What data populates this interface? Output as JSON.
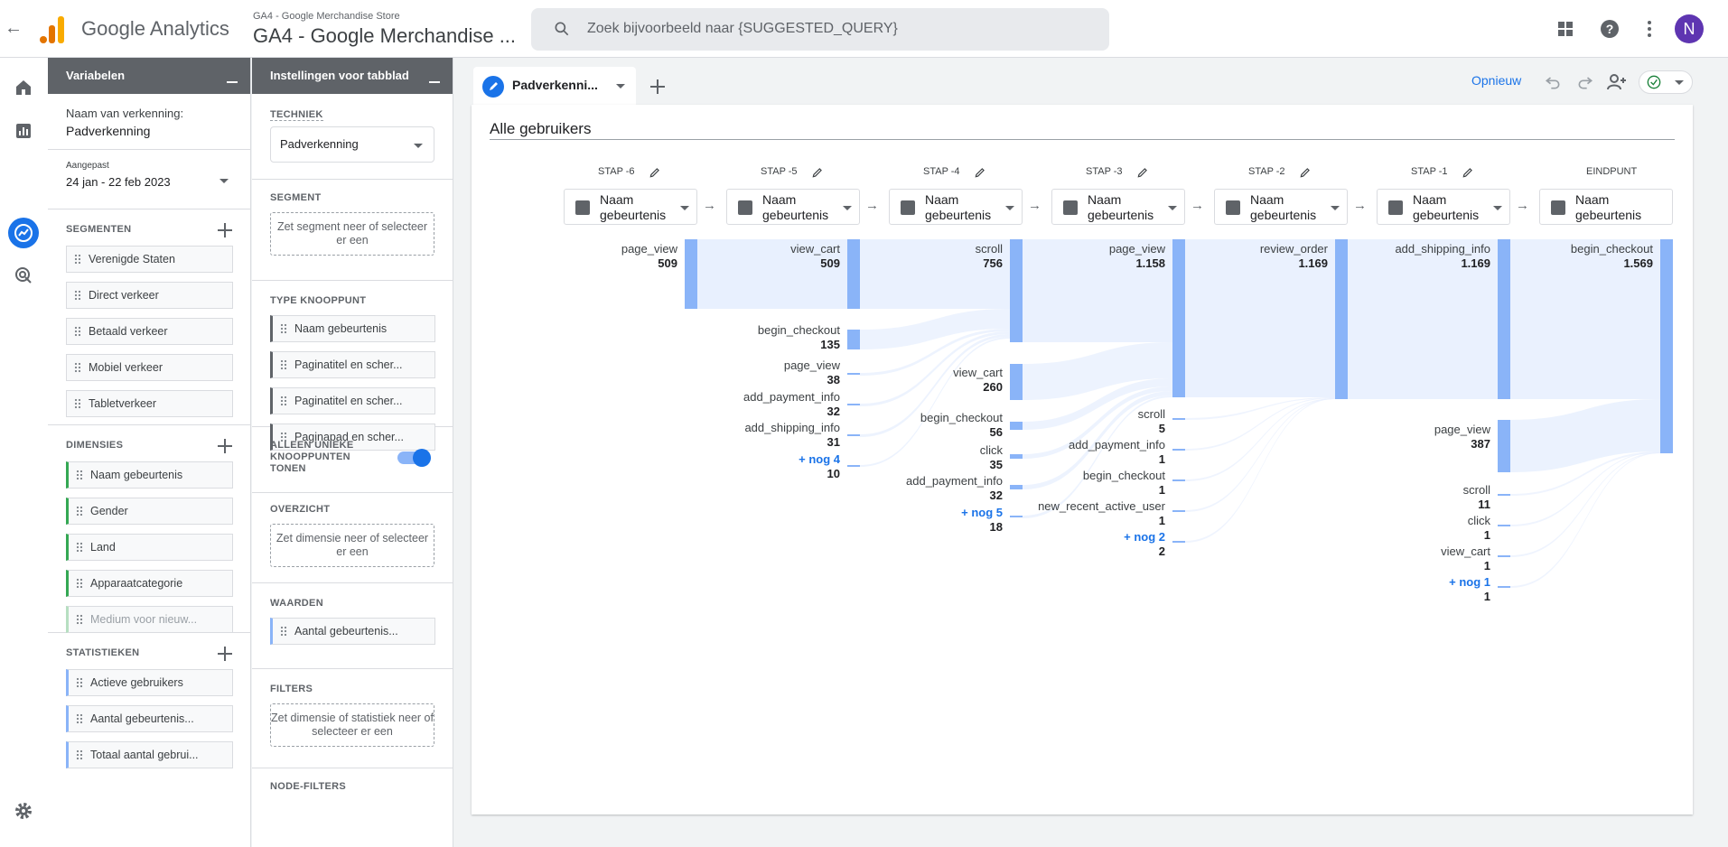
{
  "header": {
    "app_name": "Google Analytics",
    "property_small": "GA4 - Google Merchandise Store",
    "property_big": "GA4 - Google Merchandise ...",
    "search_placeholder": "Zoek bijvoorbeeld naar {SUGGESTED_QUERY}",
    "avatar_letter": "N"
  },
  "variables": {
    "title": "Variabelen",
    "exploration_label": "Naam van verkenning:",
    "exploration_name": "Padverkenning",
    "date_badge": "Aangepast",
    "date_range": "24 jan - 22 feb 2023",
    "segments_title": "SEGMENTEN",
    "segments": [
      "Verenigde Staten",
      "Direct verkeer",
      "Betaald verkeer",
      "Mobiel verkeer",
      "Tabletverkeer"
    ],
    "dimensions_title": "DIMENSIES",
    "dimensions": [
      "Naam gebeurtenis",
      "Gender",
      "Land",
      "Apparaatcategorie",
      "Medium voor nieuw..."
    ],
    "metrics_title": "STATISTIEKEN",
    "metrics": [
      "Actieve gebruikers",
      "Aantal gebeurtenis...",
      "Totaal aantal gebrui..."
    ]
  },
  "settings": {
    "title": "Instellingen voor tabblad",
    "technique_title": "TECHNIEK",
    "technique_value": "Padverkenning",
    "segment_title": "SEGMENT",
    "segment_drop": "Zet segment neer of selecteer er een",
    "node_type_title": "TYPE KNOOPPUNT",
    "node_types": [
      "Naam gebeurtenis",
      "Paginatitel en scher...",
      "Paginatitel en scher...",
      "Paginapad en scher..."
    ],
    "unique_nodes_label": "ALLEEN UNIEKE KNOOPPUNTEN TONEN",
    "overview_title": "OVERZICHT",
    "overview_drop": "Zet dimensie neer of selecteer er een",
    "values_title": "WAARDEN",
    "values_chip": "Aantal gebeurtenis...",
    "filters_title": "FILTERS",
    "filters_drop": "Zet dimensie of statistiek neer of selecteer er een",
    "node_filters_title": "NODE-FILTERS"
  },
  "canvas": {
    "tab_label": "Padverkenni...",
    "redo_label": "Opnieuw",
    "segment_title": "Alle gebruikers",
    "step_box_line1": "Naam",
    "step_box_line2": "gebeurtenis",
    "steps": [
      "STAP -6",
      "STAP -5",
      "STAP -4",
      "STAP -3",
      "STAP -2",
      "STAP -1",
      "EINDPUNT"
    ],
    "columns": [
      {
        "nodes": [
          {
            "name": "page_view",
            "count": "509"
          }
        ]
      },
      {
        "nodes": [
          {
            "name": "view_cart",
            "count": "509"
          },
          {
            "name": "begin_checkout",
            "count": "135"
          },
          {
            "name": "page_view",
            "count": "38"
          },
          {
            "name": "add_payment_info",
            "count": "32"
          },
          {
            "name": "add_shipping_info",
            "count": "31"
          },
          {
            "name": "+ nog 4",
            "count": "10",
            "more": true
          }
        ]
      },
      {
        "nodes": [
          {
            "name": "scroll",
            "count": "756"
          },
          {
            "name": "view_cart",
            "count": "260"
          },
          {
            "name": "begin_checkout",
            "count": "56"
          },
          {
            "name": "click",
            "count": "35"
          },
          {
            "name": "add_payment_info",
            "count": "32"
          },
          {
            "name": "+ nog 5",
            "count": "18",
            "more": true
          }
        ]
      },
      {
        "nodes": [
          {
            "name": "page_view",
            "count": "1.158"
          },
          {
            "name": "scroll",
            "count": "5"
          },
          {
            "name": "add_payment_info",
            "count": "1"
          },
          {
            "name": "begin_checkout",
            "count": "1"
          },
          {
            "name": "new_recent_active_user",
            "count": "1"
          },
          {
            "name": "+ nog 2",
            "count": "2",
            "more": true
          }
        ]
      },
      {
        "nodes": [
          {
            "name": "review_order",
            "count": "1.169"
          }
        ]
      },
      {
        "nodes": [
          {
            "name": "add_shipping_info",
            "count": "1.169"
          },
          {
            "name": "page_view",
            "count": "387"
          },
          {
            "name": "scroll",
            "count": "11"
          },
          {
            "name": "click",
            "count": "1"
          },
          {
            "name": "view_cart",
            "count": "1"
          },
          {
            "name": "+ nog 1",
            "count": "1",
            "more": true
          }
        ]
      },
      {
        "nodes": [
          {
            "name": "begin_checkout",
            "count": "1.569"
          }
        ]
      }
    ]
  },
  "icons": {
    "back": "back-arrow-icon",
    "search": "search-icon",
    "apps": "apps-grid-icon",
    "help": "help-icon",
    "more": "more-vert-icon",
    "home": "home-icon",
    "reports": "reports-icon",
    "explore": "explore-icon",
    "advertising": "advertising-icon",
    "settings": "settings-gear-icon"
  },
  "colors": {
    "accent": "#1a73e8",
    "node": "#8ab4f8",
    "brand": "#f9ab00"
  }
}
